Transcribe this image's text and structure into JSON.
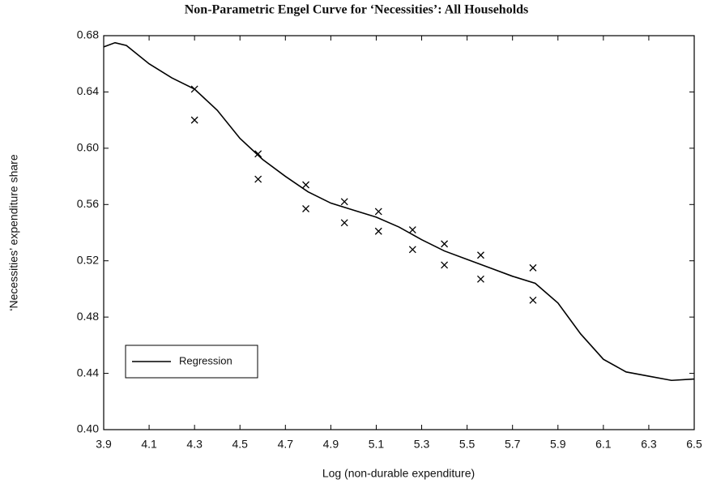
{
  "chart_data": {
    "type": "line",
    "title": "Non-Parametric Engel Curve for ‘Necessities’: All Households",
    "x_label": "Log (non-durable expenditure)",
    "y_label": "‘Necessities’ expenditure share",
    "xlim": [
      3.9,
      6.5
    ],
    "xticks": [
      3.9,
      4.1,
      4.3,
      4.5,
      4.7,
      4.9,
      5.1,
      5.3,
      5.5,
      5.7,
      5.9,
      6.1,
      6.3,
      6.5
    ],
    "ylim": [
      0.4,
      0.68
    ],
    "yticks": [
      {
        "value": 0.4,
        "label": "0.40"
      },
      0.44,
      0.48,
      0.52,
      0.56,
      {
        "value": 0.6,
        "label": "0.60"
      },
      0.64,
      0.68
    ],
    "legend": "lower left",
    "series": [
      {
        "name": "Regression",
        "color": "#000000",
        "x": [
          3.9,
          3.95,
          4.0,
          4.1,
          4.2,
          4.3,
          4.4,
          4.5,
          4.6,
          4.7,
          4.8,
          4.9,
          5.0,
          5.1,
          5.2,
          5.3,
          5.4,
          5.5,
          5.6,
          5.7,
          5.8,
          5.9,
          6.0,
          6.1,
          6.2,
          6.3,
          6.4,
          6.5
        ],
        "values": [
          0.672,
          0.675,
          0.673,
          0.66,
          0.65,
          0.642,
          0.627,
          0.607,
          0.592,
          0.58,
          0.569,
          0.561,
          0.556,
          0.551,
          0.544,
          0.535,
          0.527,
          0.521,
          0.515,
          0.509,
          0.504,
          0.49,
          0.468,
          0.45,
          0.441,
          0.438,
          0.435,
          0.436
        ]
      }
    ],
    "points": {
      "marker": "x",
      "color": "#000000",
      "x": [
        4.3,
        4.3,
        4.58,
        4.58,
        4.79,
        4.79,
        4.96,
        4.96,
        5.11,
        5.11,
        5.26,
        5.26,
        5.4,
        5.4,
        5.56,
        5.56,
        5.79,
        5.79
      ],
      "values": [
        0.642,
        0.62,
        0.596,
        0.578,
        0.574,
        0.557,
        0.562,
        0.547,
        0.555,
        0.541,
        0.542,
        0.528,
        0.532,
        0.517,
        0.524,
        0.507,
        0.515,
        0.492
      ]
    }
  }
}
